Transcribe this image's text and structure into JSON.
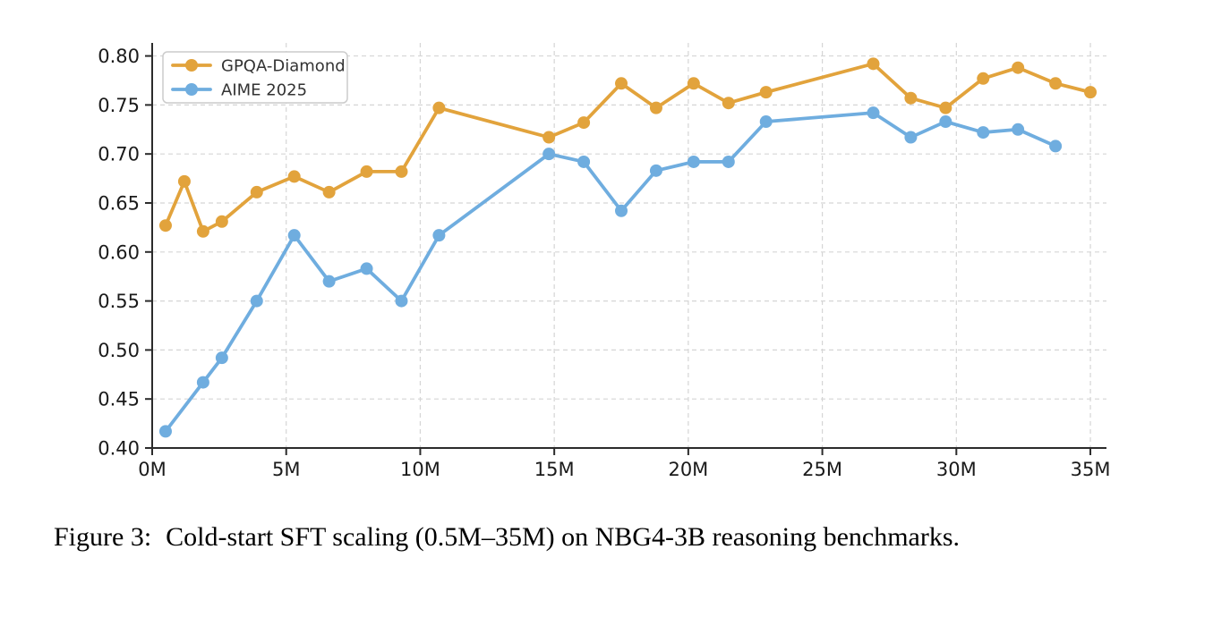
{
  "page": {
    "background": "#FFFFFF"
  },
  "figure": {
    "caption_label": "Figure 3:",
    "caption_text": "Cold-start SFT scaling (0.5M–35M) on NBG4-3B reasoning benchmarks."
  },
  "chart_data": {
    "type": "line",
    "title": "",
    "xlabel": "",
    "ylabel": "",
    "grid": true,
    "legend": {
      "position": "upper left",
      "entries": [
        "GPQA-Diamond",
        "AIME 2025"
      ]
    },
    "axis": {
      "xlim": [
        0,
        35.6
      ],
      "ylim": [
        0.4,
        0.8133
      ],
      "x_ticks": [
        0,
        5,
        10,
        15,
        20,
        25,
        30,
        35
      ],
      "x_tick_labels": [
        "0M",
        "5M",
        "10M",
        "15M",
        "20M",
        "25M",
        "30M",
        "35M"
      ],
      "y_ticks": [
        0.4,
        0.45,
        0.5,
        0.55,
        0.6,
        0.65,
        0.7,
        0.75,
        0.8
      ],
      "y_tick_labels": [
        "0.40",
        "0.45",
        "0.50",
        "0.55",
        "0.60",
        "0.65",
        "0.70",
        "0.75",
        "0.80"
      ]
    },
    "series": [
      {
        "name": "GPQA-Diamond",
        "color": "#E2A33C",
        "x": [
          0.5,
          1.2,
          1.9,
          2.6,
          3.9,
          5.3,
          6.6,
          8.0,
          9.3,
          10.7,
          14.8,
          16.1,
          17.5,
          18.8,
          20.2,
          21.5,
          22.9,
          26.9,
          28.3,
          29.6,
          31.0,
          32.3,
          33.7,
          35.0
        ],
        "y": [
          0.627,
          0.672,
          0.621,
          0.631,
          0.661,
          0.677,
          0.661,
          0.682,
          0.682,
          0.747,
          0.717,
          0.732,
          0.772,
          0.747,
          0.772,
          0.752,
          0.763,
          0.792,
          0.757,
          0.747,
          0.777,
          0.788,
          0.772,
          0.763
        ]
      },
      {
        "name": "AIME 2025",
        "color": "#6FADDF",
        "x": [
          0.5,
          1.9,
          2.6,
          3.9,
          5.3,
          6.6,
          8.0,
          9.3,
          10.7,
          14.8,
          16.1,
          17.5,
          18.8,
          20.2,
          21.5,
          22.9,
          26.9,
          28.3,
          29.6,
          31.0,
          32.3,
          33.7
        ],
        "y": [
          0.417,
          0.467,
          0.492,
          0.55,
          0.617,
          0.57,
          0.583,
          0.55,
          0.617,
          0.7,
          0.692,
          0.642,
          0.683,
          0.692,
          0.692,
          0.733,
          0.742,
          0.717,
          0.733,
          0.722,
          0.725,
          0.708
        ]
      }
    ]
  },
  "style": {
    "grid_color": "#D5D5D5",
    "spine_color": "#2B2B2B",
    "tick_label_color": "#1A1A1A",
    "legend_border_color": "#CCCCCC",
    "legend_bg_color": "#FFFFFF",
    "legend_text_color": "#333333",
    "caption_color": "#000000"
  }
}
